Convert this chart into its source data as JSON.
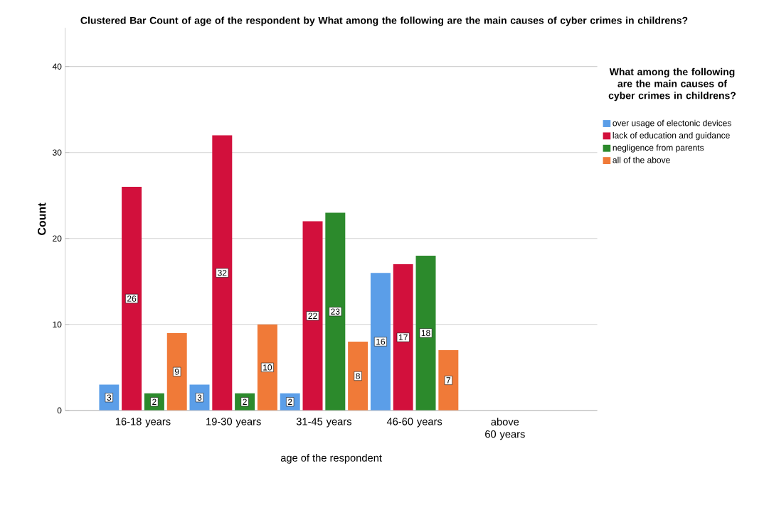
{
  "chart_data": {
    "type": "bar",
    "title": "Clustered Bar Count of age of the respondent by What among the following are the main causes of cyber crimes in childrens?",
    "xlabel": "age of the respondent",
    "ylabel": "Count",
    "legend_title": "What among the following are the main causes of cyber crimes in childrens?",
    "categories": [
      "16-18 years",
      "19-30 years",
      "31-45 years",
      "46-60 years",
      "above 60 years"
    ],
    "series": [
      {
        "name": "over usage of electonic devices",
        "color": "#5b9ee8",
        "values": [
          3,
          3,
          2,
          16,
          null
        ]
      },
      {
        "name": "lack of education and guidance",
        "color": "#d2103c",
        "values": [
          26,
          32,
          22,
          17,
          null
        ]
      },
      {
        "name": "negligence from parents",
        "color": "#2c8a2c",
        "values": [
          2,
          2,
          23,
          18,
          null
        ]
      },
      {
        "name": "all of the above",
        "color": "#f07a38",
        "values": [
          9,
          10,
          8,
          7,
          null
        ]
      }
    ],
    "ylim": [
      0,
      44.5
    ],
    "yticks": [
      0,
      10,
      20,
      30,
      40
    ],
    "grid": "y",
    "legend": "right",
    "data_labels": true
  }
}
